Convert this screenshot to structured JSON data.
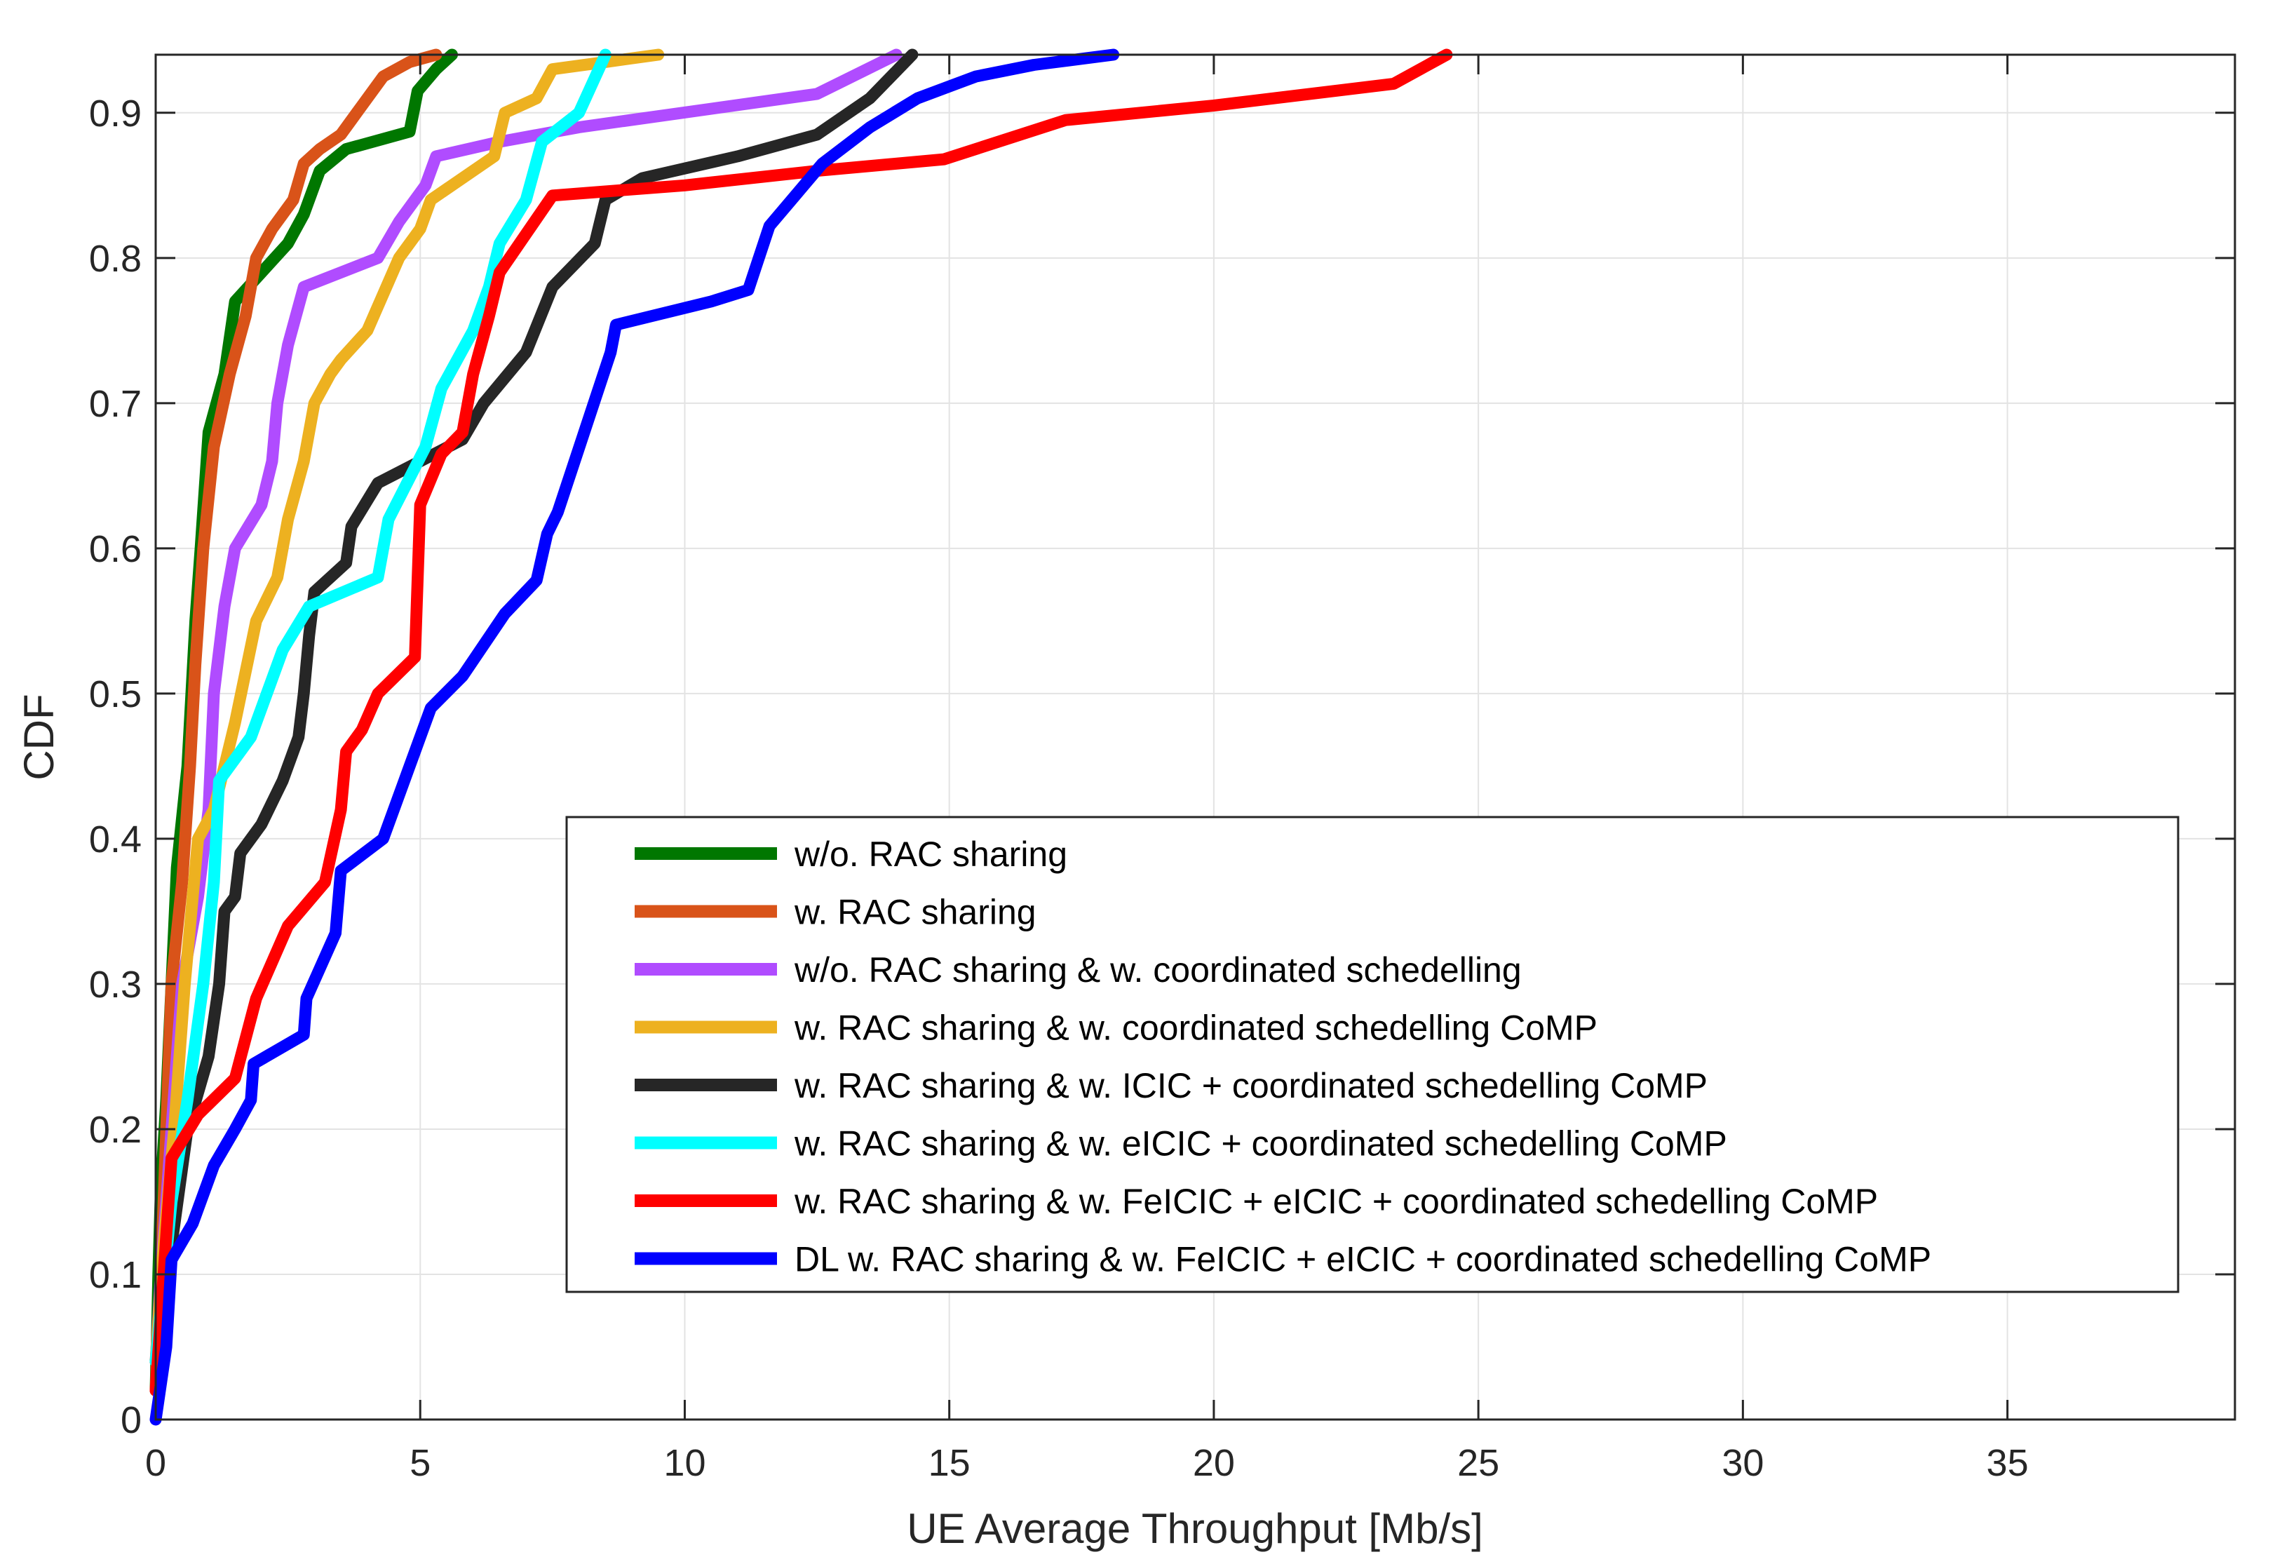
{
  "chart_data": {
    "type": "line",
    "title": "",
    "xlabel": "UE Average Throughput [Mb/s]",
    "ylabel": "CDF",
    "xlim": [
      0,
      39.3
    ],
    "ylim": [
      0,
      0.94
    ],
    "xticks": [
      0,
      5,
      10,
      15,
      20,
      25,
      30,
      35
    ],
    "yticks": [
      0,
      0.1,
      0.2,
      0.3,
      0.4,
      0.5,
      0.6,
      0.7,
      0.8,
      0.9
    ],
    "xtick_labels": [
      "0",
      "5",
      "10",
      "15",
      "20",
      "25",
      "30",
      "35"
    ],
    "ytick_labels": [
      "0",
      "0.1",
      "0.2",
      "0.3",
      "0.4",
      "0.5",
      "0.6",
      "0.7",
      "0.8",
      "0.9"
    ],
    "grid": true,
    "legend_position": "lower-right",
    "series": [
      {
        "name": "w/o. RAC sharing",
        "color": "#007700",
        "points": [
          [
            0,
            0.02
          ],
          [
            0.05,
            0.1
          ],
          [
            0.1,
            0.16
          ],
          [
            0.2,
            0.22
          ],
          [
            0.3,
            0.3
          ],
          [
            0.4,
            0.38
          ],
          [
            0.6,
            0.45
          ],
          [
            0.75,
            0.55
          ],
          [
            0.85,
            0.6
          ],
          [
            1.0,
            0.68
          ],
          [
            1.3,
            0.72
          ],
          [
            1.5,
            0.77
          ],
          [
            2.0,
            0.79
          ],
          [
            2.5,
            0.81
          ],
          [
            2.8,
            0.83
          ],
          [
            3.1,
            0.86
          ],
          [
            3.6,
            0.875
          ],
          [
            4.8,
            0.887
          ],
          [
            4.95,
            0.915
          ],
          [
            5.3,
            0.93
          ],
          [
            5.6,
            0.94
          ]
        ]
      },
      {
        "name": "w. RAC sharing",
        "color": "#D95319",
        "points": [
          [
            0,
            0.02
          ],
          [
            0.1,
            0.1
          ],
          [
            0.2,
            0.2
          ],
          [
            0.3,
            0.3
          ],
          [
            0.5,
            0.37
          ],
          [
            0.65,
            0.45
          ],
          [
            0.75,
            0.52
          ],
          [
            0.9,
            0.6
          ],
          [
            1.1,
            0.67
          ],
          [
            1.4,
            0.72
          ],
          [
            1.7,
            0.76
          ],
          [
            1.9,
            0.8
          ],
          [
            2.2,
            0.82
          ],
          [
            2.6,
            0.84
          ],
          [
            2.8,
            0.865
          ],
          [
            3.1,
            0.875
          ],
          [
            3.5,
            0.885
          ],
          [
            3.8,
            0.9
          ],
          [
            4.3,
            0.925
          ],
          [
            4.8,
            0.935
          ],
          [
            5.3,
            0.94
          ]
        ]
      },
      {
        "name": "w/o. RAC sharing & w. coordinated schedelling",
        "color": "#B04CFF",
        "points": [
          [
            0,
            0.04
          ],
          [
            0.1,
            0.1
          ],
          [
            0.3,
            0.2
          ],
          [
            0.5,
            0.3
          ],
          [
            0.8,
            0.36
          ],
          [
            1.0,
            0.42
          ],
          [
            1.1,
            0.5
          ],
          [
            1.3,
            0.56
          ],
          [
            1.5,
            0.6
          ],
          [
            2.0,
            0.63
          ],
          [
            2.2,
            0.66
          ],
          [
            2.3,
            0.7
          ],
          [
            2.5,
            0.74
          ],
          [
            2.8,
            0.78
          ],
          [
            4.2,
            0.8
          ],
          [
            4.6,
            0.825
          ],
          [
            5.1,
            0.85
          ],
          [
            5.3,
            0.87
          ],
          [
            6.5,
            0.88
          ],
          [
            8.0,
            0.89
          ],
          [
            12.5,
            0.913
          ],
          [
            14,
            0.94
          ]
        ]
      },
      {
        "name": "w. RAC sharing & w. coordinated schedelling CoMP",
        "color": "#EDB120",
        "points": [
          [
            0,
            0.04
          ],
          [
            0.15,
            0.12
          ],
          [
            0.35,
            0.2
          ],
          [
            0.55,
            0.3
          ],
          [
            0.7,
            0.36
          ],
          [
            0.8,
            0.4
          ],
          [
            1.1,
            0.42
          ],
          [
            1.5,
            0.48
          ],
          [
            1.9,
            0.55
          ],
          [
            2.3,
            0.58
          ],
          [
            2.5,
            0.62
          ],
          [
            2.8,
            0.66
          ],
          [
            3.0,
            0.7
          ],
          [
            3.3,
            0.72
          ],
          [
            3.5,
            0.73
          ],
          [
            4.0,
            0.75
          ],
          [
            4.6,
            0.8
          ],
          [
            5.0,
            0.82
          ],
          [
            5.2,
            0.84
          ],
          [
            6.4,
            0.87
          ],
          [
            6.6,
            0.9
          ],
          [
            7.2,
            0.91
          ],
          [
            7.5,
            0.93
          ],
          [
            8.5,
            0.935
          ],
          [
            9.5,
            0.94
          ]
        ]
      },
      {
        "name": "w. RAC sharing & w. ICIC + coordinated schedelling CoMP",
        "color": "#262626",
        "points": [
          [
            0,
            0.04
          ],
          [
            0.3,
            0.12
          ],
          [
            0.6,
            0.2
          ],
          [
            1.0,
            0.25
          ],
          [
            1.2,
            0.3
          ],
          [
            1.3,
            0.35
          ],
          [
            1.5,
            0.36
          ],
          [
            1.6,
            0.39
          ],
          [
            2.0,
            0.41
          ],
          [
            2.4,
            0.44
          ],
          [
            2.7,
            0.47
          ],
          [
            2.8,
            0.5
          ],
          [
            2.9,
            0.54
          ],
          [
            3.0,
            0.57
          ],
          [
            3.6,
            0.59
          ],
          [
            3.7,
            0.615
          ],
          [
            4.2,
            0.645
          ],
          [
            5.8,
            0.675
          ],
          [
            6.2,
            0.7
          ],
          [
            7.0,
            0.735
          ],
          [
            7.5,
            0.78
          ],
          [
            8.3,
            0.81
          ],
          [
            8.5,
            0.84
          ],
          [
            9.2,
            0.855
          ],
          [
            11,
            0.87
          ],
          [
            12.5,
            0.885
          ],
          [
            13.5,
            0.91
          ],
          [
            14.3,
            0.94
          ]
        ]
      },
      {
        "name": "w. RAC sharing & w. eICIC + coordinated schedelling CoMP",
        "color": "#00FFFF",
        "points": [
          [
            0,
            0.04
          ],
          [
            0.3,
            0.15
          ],
          [
            0.6,
            0.22
          ],
          [
            0.9,
            0.3
          ],
          [
            1.1,
            0.37
          ],
          [
            1.2,
            0.44
          ],
          [
            1.8,
            0.47
          ],
          [
            2.4,
            0.53
          ],
          [
            2.9,
            0.56
          ],
          [
            4.2,
            0.58
          ],
          [
            4.4,
            0.62
          ],
          [
            5.1,
            0.67
          ],
          [
            5.4,
            0.71
          ],
          [
            6.0,
            0.75
          ],
          [
            6.3,
            0.78
          ],
          [
            6.5,
            0.81
          ],
          [
            7.0,
            0.84
          ],
          [
            7.3,
            0.88
          ],
          [
            8.0,
            0.9
          ],
          [
            8.5,
            0.94
          ]
        ]
      },
      {
        "name": "w. RAC sharing & w. FeICIC + eICIC + coordinated schedelling CoMP",
        "color": "#FF0000",
        "points": [
          [
            0,
            0.02
          ],
          [
            0.3,
            0.18
          ],
          [
            0.8,
            0.21
          ],
          [
            1.5,
            0.235
          ],
          [
            1.9,
            0.29
          ],
          [
            2.5,
            0.34
          ],
          [
            3.2,
            0.37
          ],
          [
            3.5,
            0.42
          ],
          [
            3.6,
            0.46
          ],
          [
            3.9,
            0.475
          ],
          [
            4.2,
            0.5
          ],
          [
            4.9,
            0.525
          ],
          [
            5.0,
            0.63
          ],
          [
            5.4,
            0.665
          ],
          [
            5.8,
            0.68
          ],
          [
            6.0,
            0.72
          ],
          [
            6.3,
            0.76
          ],
          [
            6.5,
            0.79
          ],
          [
            7.5,
            0.843
          ],
          [
            10,
            0.85
          ],
          [
            12.5,
            0.86
          ],
          [
            14.9,
            0.868
          ],
          [
            17.2,
            0.895
          ],
          [
            20.0,
            0.905
          ],
          [
            23.4,
            0.92
          ],
          [
            24.4,
            0.94
          ]
        ]
      },
      {
        "name": "DL w. RAC sharing & w. FeICIC + eICIC + coordinated schedelling CoMP",
        "color": "#0000FF",
        "points": [
          [
            0,
            0.0
          ],
          [
            0.2,
            0.05
          ],
          [
            0.3,
            0.11
          ],
          [
            0.7,
            0.135
          ],
          [
            1.1,
            0.175
          ],
          [
            1.5,
            0.2
          ],
          [
            1.8,
            0.22
          ],
          [
            1.85,
            0.245
          ],
          [
            2.8,
            0.265
          ],
          [
            2.85,
            0.29
          ],
          [
            3.4,
            0.335
          ],
          [
            3.5,
            0.378
          ],
          [
            4.3,
            0.4
          ],
          [
            5.2,
            0.49
          ],
          [
            5.8,
            0.512
          ],
          [
            6.6,
            0.555
          ],
          [
            7.2,
            0.578
          ],
          [
            7.4,
            0.61
          ],
          [
            7.6,
            0.625
          ],
          [
            8.6,
            0.735
          ],
          [
            8.7,
            0.754
          ],
          [
            10.5,
            0.77
          ],
          [
            11.2,
            0.778
          ],
          [
            11.4,
            0.8
          ],
          [
            11.6,
            0.822
          ],
          [
            12.6,
            0.865
          ],
          [
            13.5,
            0.89
          ],
          [
            14.4,
            0.91
          ],
          [
            15.5,
            0.925
          ],
          [
            16.6,
            0.933
          ],
          [
            18.1,
            0.94
          ]
        ]
      }
    ]
  }
}
